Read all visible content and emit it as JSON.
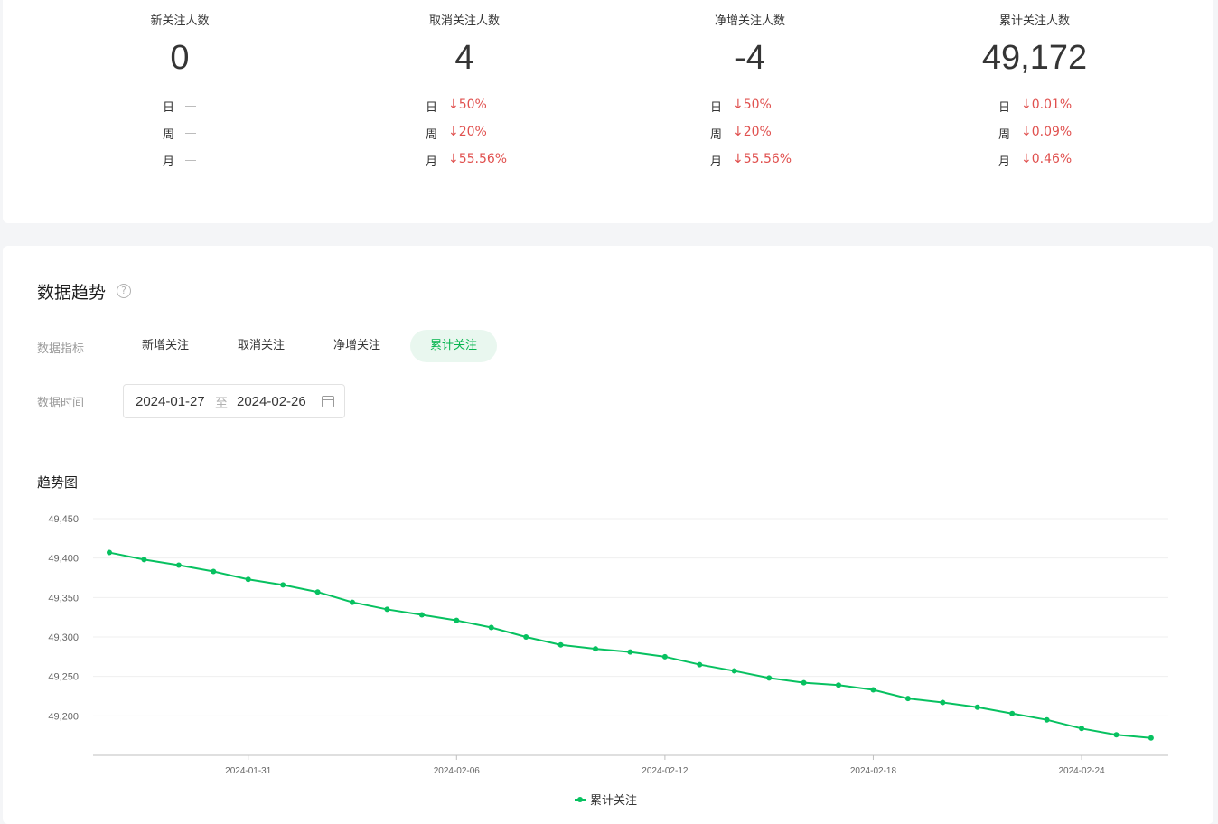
{
  "stats": [
    {
      "title": "新关注人数",
      "value": "0",
      "compare": [
        {
          "label": "日",
          "value": ""
        },
        {
          "label": "周",
          "value": ""
        },
        {
          "label": "月",
          "value": ""
        }
      ]
    },
    {
      "title": "取消关注人数",
      "value": "4",
      "compare": [
        {
          "label": "日",
          "value": "↓50%"
        },
        {
          "label": "周",
          "value": "↓20%"
        },
        {
          "label": "月",
          "value": "↓55.56%"
        }
      ]
    },
    {
      "title": "净增关注人数",
      "value": "-4",
      "compare": [
        {
          "label": "日",
          "value": "↓50%"
        },
        {
          "label": "周",
          "value": "↓20%"
        },
        {
          "label": "月",
          "value": "↓55.56%"
        }
      ]
    },
    {
      "title": "累计关注人数",
      "value": "49,172",
      "compare": [
        {
          "label": "日",
          "value": "↓0.01%"
        },
        {
          "label": "周",
          "value": "↓0.09%"
        },
        {
          "label": "月",
          "value": "↓0.46%"
        }
      ]
    }
  ],
  "trend": {
    "title": "数据趋势",
    "help_icon": "?",
    "metric_label": "数据指标",
    "tabs": [
      "新增关注",
      "取消关注",
      "净增关注",
      "累计关注"
    ],
    "active_tab": "累计关注",
    "time_label": "数据时间",
    "date_start": "2024-01-27",
    "date_sep": "至",
    "date_end": "2024-02-26",
    "chart_title": "趋势图"
  },
  "colors": {
    "accent": "#07c160",
    "down": "#e0504e"
  },
  "chart_data": {
    "type": "line",
    "title": "趋势图",
    "ylim": [
      49150,
      49450
    ],
    "yticks": [
      49200,
      49250,
      49300,
      49350,
      49400,
      49450
    ],
    "ytick_labels": [
      "49,200",
      "49,250",
      "49,300",
      "49,350",
      "49,400",
      "49,450"
    ],
    "x": [
      "2024-01-27",
      "2024-01-28",
      "2024-01-29",
      "2024-01-30",
      "2024-01-31",
      "2024-02-01",
      "2024-02-02",
      "2024-02-03",
      "2024-02-04",
      "2024-02-05",
      "2024-02-06",
      "2024-02-07",
      "2024-02-08",
      "2024-02-09",
      "2024-02-10",
      "2024-02-11",
      "2024-02-12",
      "2024-02-13",
      "2024-02-14",
      "2024-02-15",
      "2024-02-16",
      "2024-02-17",
      "2024-02-18",
      "2024-02-19",
      "2024-02-20",
      "2024-02-21",
      "2024-02-22",
      "2024-02-23",
      "2024-02-24",
      "2024-02-25",
      "2024-02-26"
    ],
    "xtick_labels": [
      "2024-01-31",
      "2024-02-06",
      "2024-02-12",
      "2024-02-18",
      "2024-02-24"
    ],
    "series": [
      {
        "name": "累计关注",
        "color": "#07c160",
        "values": [
          49407,
          49398,
          49391,
          49383,
          49373,
          49366,
          49357,
          49344,
          49335,
          49328,
          49321,
          49312,
          49300,
          49290,
          49285,
          49281,
          49275,
          49265,
          49257,
          49248,
          49242,
          49239,
          49233,
          49222,
          49217,
          49211,
          49203,
          49195,
          49184,
          49176,
          49172
        ]
      }
    ],
    "legend": "bottom-center",
    "grid": true
  }
}
